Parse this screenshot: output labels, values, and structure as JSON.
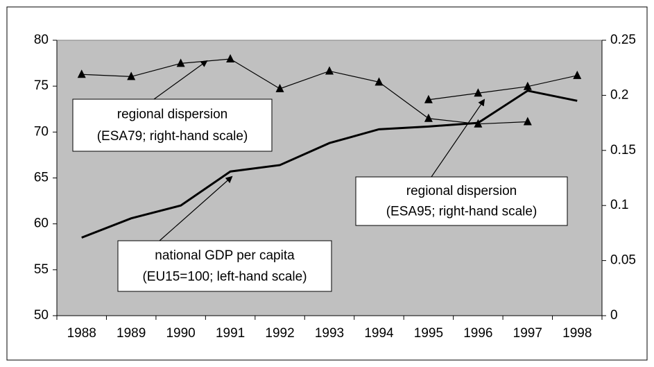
{
  "chart_data": {
    "type": "line",
    "categories": [
      "1988",
      "1989",
      "1990",
      "1991",
      "1992",
      "1993",
      "1994",
      "1995",
      "1996",
      "1997",
      "1998"
    ],
    "series": [
      {
        "name": "national GDP per capita",
        "color": "#000000",
        "values": [
          58.5,
          60.6,
          62.0,
          65.7,
          66.4,
          68.8,
          70.3,
          70.6,
          71.0,
          74.5,
          73.4
        ]
      },
      {
        "name": "regional dispersion ESA79",
        "color": "#000000",
        "axis": "y2",
        "values": [
          0.219,
          0.217,
          0.229,
          0.233,
          0.206,
          0.222,
          0.212,
          0.179,
          0.174,
          0.176,
          null
        ]
      },
      {
        "name": "regional dispersion ESA95",
        "color": "#000000",
        "axis": "y2",
        "values": [
          null,
          null,
          null,
          null,
          null,
          null,
          null,
          0.196,
          0.202,
          0.208,
          0.218
        ]
      }
    ],
    "ylim": [
      50,
      80
    ],
    "yticks": [
      50,
      55,
      60,
      65,
      70,
      75,
      80
    ],
    "y2lim": [
      0,
      0.25
    ],
    "y2ticks": [
      0,
      0.05,
      0.1,
      0.15,
      0.2,
      0.25
    ],
    "background": "#c0c0c0",
    "annotations": [
      {
        "lines": [
          "regional dispersion",
          "(ESA79; right-hand scale)"
        ]
      },
      {
        "lines": [
          "regional dispersion",
          "(ESA95; right-hand scale)"
        ]
      },
      {
        "lines": [
          "national GDP per capita",
          "(EU15=100; left-hand scale)"
        ]
      }
    ]
  }
}
